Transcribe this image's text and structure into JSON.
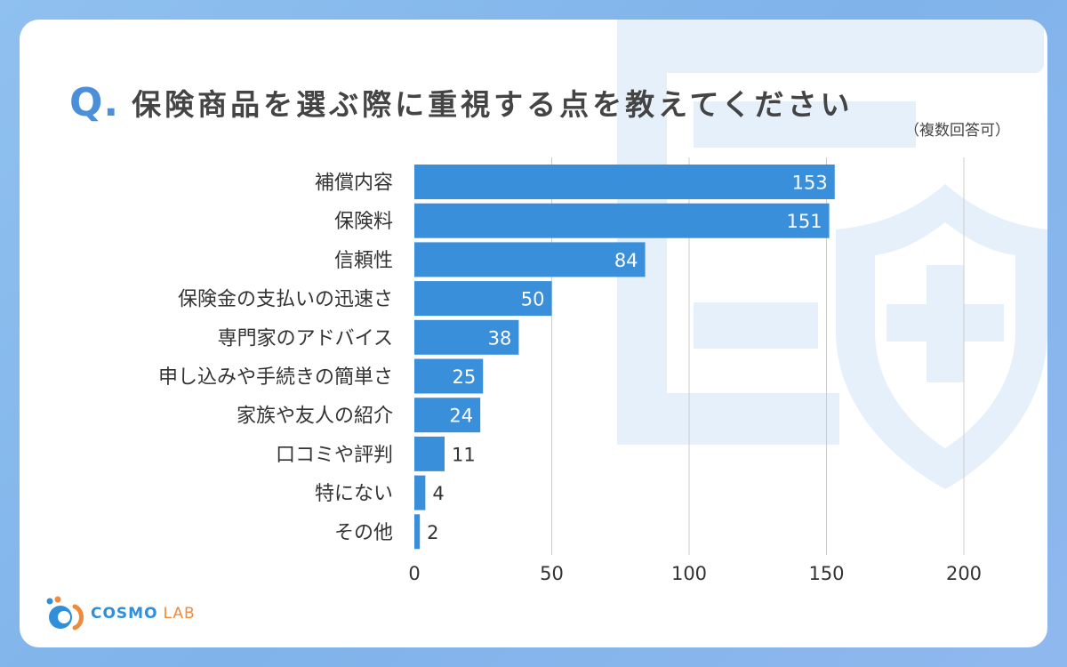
{
  "title": {
    "q_mark": "Q.",
    "text": "保険商品を選ぶ際に重視する点を教えてください",
    "note": "（複数回答可）"
  },
  "logo": {
    "part1": "COSMO",
    "part2": "LAB"
  },
  "colors": {
    "bar": "#3a8fdb",
    "grid": "#cccccc",
    "title_accent": "#4a8fd8",
    "logo_blue": "#2f8fd8",
    "logo_orange": "#f08a3c",
    "deco": "#e6f0fb"
  },
  "chart_data": {
    "type": "bar",
    "orientation": "horizontal",
    "categories": [
      "補償内容",
      "保険料",
      "信頼性",
      "保険金の支払いの迅速さ",
      "専門家のアドバイス",
      "申し込みや手続きの簡単さ",
      "家族や友人の紹介",
      "口コミや評判",
      "特にない",
      "その他"
    ],
    "values": [
      153,
      151,
      84,
      50,
      38,
      25,
      24,
      11,
      4,
      2
    ],
    "xlim": [
      0,
      200
    ],
    "xticks": [
      0,
      50,
      100,
      150,
      200
    ],
    "grid": true,
    "legend": false
  }
}
